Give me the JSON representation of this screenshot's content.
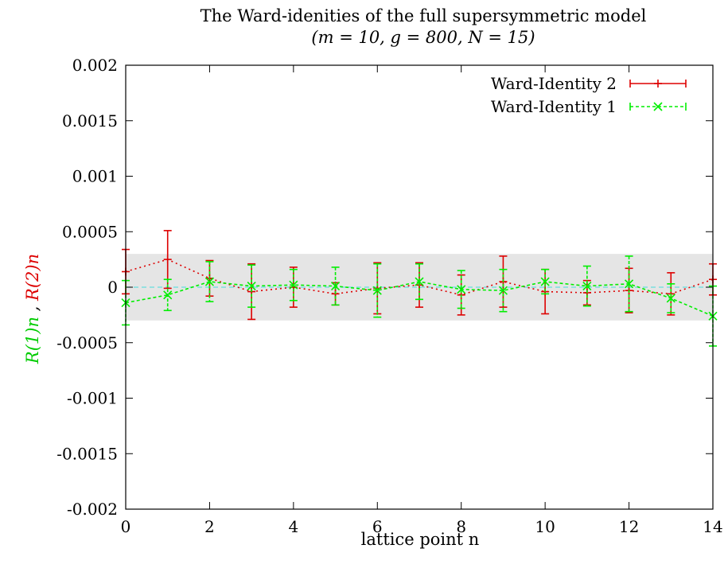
{
  "chart_data": {
    "type": "line",
    "title_line1": "The Ward-idenities of the full supersymmetric model",
    "title_line2": "(m = 10, g = 800, N = 15)",
    "xlabel": "lattice point n",
    "ylabel_part1": "R(1)n",
    "ylabel_sep": " , ",
    "ylabel_part2": "R(2)n",
    "xlim": [
      0,
      14
    ],
    "ylim": [
      -0.002,
      0.002
    ],
    "x_ticks": [
      0,
      2,
      4,
      6,
      8,
      10,
      12,
      14
    ],
    "x_tick_labels": [
      "0",
      "2",
      "4",
      "6",
      "8",
      "10",
      "12",
      "14"
    ],
    "y_ticks": [
      0.002,
      0.0015,
      0.001,
      0.0005,
      0,
      -0.0005,
      -0.001,
      -0.0015,
      -0.002
    ],
    "y_tick_labels": [
      "0.002",
      "0.0015",
      "0.001",
      "0.0005",
      "0",
      "-0.0005",
      "-0.001",
      "-0.0015",
      "-0.002"
    ],
    "band": {
      "ymin": -0.0003,
      "ymax": 0.0003,
      "color": "#e5e5e5"
    },
    "zero_line_color": "#66dddd",
    "legend_position": "top-right",
    "grid": false,
    "x": [
      0,
      1,
      2,
      3,
      4,
      5,
      6,
      7,
      8,
      9,
      10,
      11,
      12,
      13,
      14
    ],
    "series": [
      {
        "name": "Ward-Identity 2",
        "color": "#dd0000",
        "marker": "plus",
        "values": [
          0.00014,
          0.00025,
          8e-05,
          -4e-05,
          0.0,
          -6e-05,
          -1e-05,
          2e-05,
          -7e-05,
          5e-05,
          -4e-05,
          -5e-05,
          -3e-05,
          -6e-05,
          7e-05
        ],
        "errors": [
          0.0002,
          0.00026,
          0.00016,
          0.00025,
          0.00018,
          0.0001,
          0.00023,
          0.0002,
          0.00018,
          0.00023,
          0.0002,
          0.00011,
          0.0002,
          0.00019,
          0.00014
        ]
      },
      {
        "name": "Ward-Identity 1",
        "color": "#00ee00",
        "marker": "cross",
        "values": [
          -0.00014,
          -7e-05,
          5e-05,
          1e-05,
          2e-05,
          1e-05,
          -3e-05,
          5e-05,
          -2e-05,
          -3e-05,
          5e-05,
          1e-05,
          3e-05,
          -0.0001,
          -0.00026
        ],
        "errors": [
          0.0002,
          0.00014,
          0.00018,
          0.00019,
          0.00014,
          0.00017,
          0.00024,
          0.00016,
          0.00017,
          0.00019,
          0.00011,
          0.00018,
          0.00025,
          0.00013,
          0.00027
        ]
      }
    ]
  }
}
